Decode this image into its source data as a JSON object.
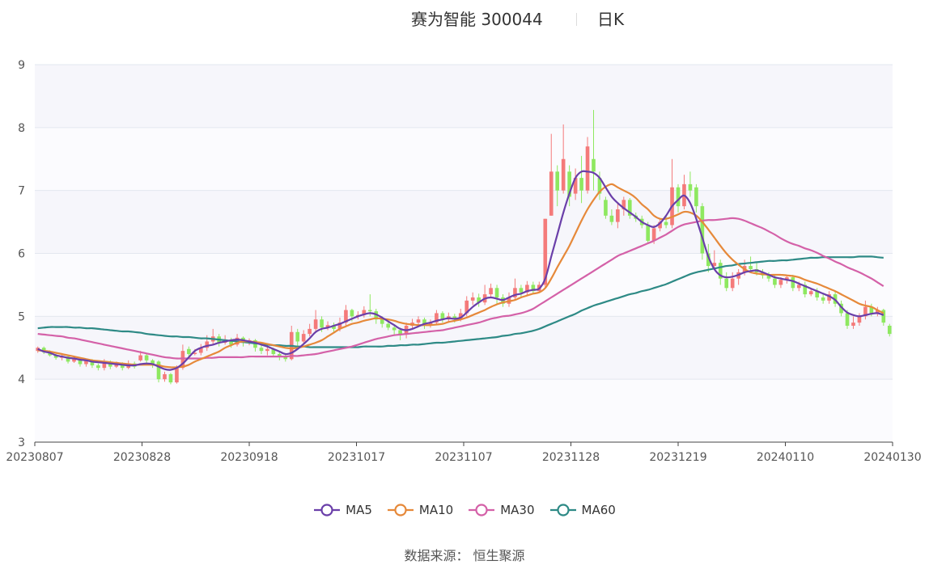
{
  "header": {
    "title": "赛为智能 300044",
    "subtitle": "日K"
  },
  "source": {
    "text": "数据来源：  恒生聚源"
  },
  "colors": {
    "up": "#f47a7a",
    "down": "#8ee860",
    "band": "#f6f6fb",
    "grid": "#e3e7ef",
    "axis": "#444444"
  },
  "chart_data": {
    "type": "candlestick",
    "ylim": [
      3,
      9
    ],
    "yticks": [
      3,
      4,
      5,
      6,
      7,
      8,
      9
    ],
    "xlabels": [
      "20230807",
      "20230828",
      "20230918",
      "20231017",
      "20231107",
      "20231128",
      "20231219",
      "20240110",
      "20240130"
    ],
    "legend": [
      {
        "name": "MA5",
        "color": "#6a3fa9"
      },
      {
        "name": "MA10",
        "color": "#e6893a"
      },
      {
        "name": "MA30",
        "color": "#d461a8"
      },
      {
        "name": "MA60",
        "color": "#2e8a86"
      }
    ],
    "candles": [
      [
        4.45,
        4.5,
        4.52,
        4.42
      ],
      [
        4.5,
        4.43,
        4.52,
        4.4
      ],
      [
        4.43,
        4.38,
        4.46,
        4.36
      ],
      [
        4.38,
        4.34,
        4.41,
        4.31
      ],
      [
        4.34,
        4.36,
        4.4,
        4.3
      ],
      [
        4.36,
        4.28,
        4.38,
        4.25
      ],
      [
        4.28,
        4.32,
        4.35,
        4.26
      ],
      [
        4.32,
        4.24,
        4.34,
        4.2
      ],
      [
        4.24,
        4.3,
        4.33,
        4.2
      ],
      [
        4.3,
        4.22,
        4.32,
        4.18
      ],
      [
        4.22,
        4.18,
        4.25,
        4.14
      ],
      [
        4.18,
        4.28,
        4.32,
        4.14
      ],
      [
        4.28,
        4.2,
        4.3,
        4.16
      ],
      [
        4.2,
        4.24,
        4.28,
        4.18
      ],
      [
        4.24,
        4.18,
        4.27,
        4.14
      ],
      [
        4.18,
        4.25,
        4.3,
        4.16
      ],
      [
        4.25,
        4.2,
        4.28,
        4.17
      ],
      [
        4.3,
        4.38,
        4.45,
        4.28
      ],
      [
        4.38,
        4.3,
        4.42,
        4.26
      ],
      [
        4.3,
        4.22,
        4.32,
        4.18
      ],
      [
        4.28,
        4.0,
        4.3,
        3.95
      ],
      [
        4.0,
        4.08,
        4.12,
        3.96
      ],
      [
        4.08,
        3.95,
        4.1,
        3.92
      ],
      [
        3.95,
        4.18,
        4.22,
        3.93
      ],
      [
        4.18,
        4.45,
        4.55,
        4.15
      ],
      [
        4.48,
        4.4,
        4.52,
        4.35
      ],
      [
        4.4,
        4.42,
        4.48,
        4.38
      ],
      [
        4.42,
        4.5,
        4.56,
        4.38
      ],
      [
        4.5,
        4.6,
        4.7,
        4.45
      ],
      [
        4.6,
        4.68,
        4.8,
        4.55
      ],
      [
        4.68,
        4.58,
        4.72,
        4.52
      ],
      [
        4.58,
        4.62,
        4.7,
        4.55
      ],
      [
        4.62,
        4.55,
        4.66,
        4.5
      ],
      [
        4.55,
        4.66,
        4.72,
        4.52
      ],
      [
        4.66,
        4.58,
        4.68,
        4.52
      ],
      [
        4.58,
        4.62,
        4.65,
        4.54
      ],
      [
        4.62,
        4.5,
        4.64,
        4.44
      ],
      [
        4.5,
        4.45,
        4.55,
        4.4
      ],
      [
        4.45,
        4.48,
        4.52,
        4.38
      ],
      [
        4.48,
        4.4,
        4.5,
        4.35
      ],
      [
        4.4,
        4.36,
        4.45,
        4.3
      ],
      [
        4.36,
        4.32,
        4.4,
        4.28
      ],
      [
        4.32,
        4.75,
        4.85,
        4.3
      ],
      [
        4.75,
        4.6,
        4.8,
        4.5
      ],
      [
        4.6,
        4.72,
        4.78,
        4.55
      ],
      [
        4.72,
        4.8,
        4.88,
        4.68
      ],
      [
        4.8,
        4.95,
        5.1,
        4.75
      ],
      [
        4.95,
        4.82,
        5.0,
        4.75
      ],
      [
        4.82,
        4.86,
        4.92,
        4.78
      ],
      [
        4.86,
        4.8,
        4.9,
        4.74
      ],
      [
        4.8,
        4.9,
        4.98,
        4.76
      ],
      [
        4.9,
        5.1,
        5.18,
        4.85
      ],
      [
        5.1,
        5.0,
        5.12,
        4.92
      ],
      [
        5.0,
        5.02,
        5.08,
        4.95
      ],
      [
        5.02,
        5.1,
        5.16,
        4.98
      ],
      [
        5.1,
        5.08,
        5.35,
        5.0
      ],
      [
        5.08,
        4.95,
        5.12,
        4.88
      ],
      [
        4.95,
        4.88,
        5.0,
        4.82
      ],
      [
        4.88,
        4.82,
        4.92,
        4.78
      ],
      [
        4.82,
        4.78,
        4.86,
        4.7
      ],
      [
        4.78,
        4.72,
        4.82,
        4.62
      ],
      [
        4.72,
        4.85,
        4.9,
        4.65
      ],
      [
        4.85,
        4.9,
        4.96,
        4.8
      ],
      [
        4.9,
        4.95,
        5.0,
        4.84
      ],
      [
        4.95,
        4.85,
        4.98,
        4.8
      ],
      [
        4.85,
        4.9,
        4.95,
        4.82
      ],
      [
        4.9,
        5.05,
        5.1,
        4.86
      ],
      [
        5.05,
        4.95,
        5.08,
        4.9
      ],
      [
        4.95,
        5.0,
        5.06,
        4.92
      ],
      [
        5.0,
        4.95,
        5.04,
        4.9
      ],
      [
        4.95,
        5.05,
        5.12,
        4.92
      ],
      [
        5.05,
        5.25,
        5.32,
        5.0
      ],
      [
        5.25,
        5.3,
        5.38,
        5.18
      ],
      [
        5.3,
        5.22,
        5.36,
        5.15
      ],
      [
        5.22,
        5.35,
        5.5,
        5.18
      ],
      [
        5.35,
        5.45,
        5.52,
        5.3
      ],
      [
        5.45,
        5.3,
        5.5,
        5.2
      ],
      [
        5.3,
        5.2,
        5.35,
        5.15
      ],
      [
        5.2,
        5.3,
        5.38,
        5.15
      ],
      [
        5.3,
        5.45,
        5.6,
        5.25
      ],
      [
        5.45,
        5.38,
        5.5,
        5.3
      ],
      [
        5.38,
        5.5,
        5.56,
        5.32
      ],
      [
        5.5,
        5.4,
        5.55,
        5.35
      ],
      [
        5.4,
        5.5,
        5.55,
        5.38
      ],
      [
        5.5,
        6.55,
        6.55,
        5.45
      ],
      [
        6.6,
        7.3,
        7.9,
        6.6
      ],
      [
        7.3,
        7.0,
        7.4,
        6.75
      ],
      [
        7.0,
        7.5,
        8.05,
        6.95
      ],
      [
        7.3,
        6.9,
        7.4,
        6.75
      ],
      [
        6.95,
        7.2,
        7.35,
        6.85
      ],
      [
        7.2,
        7.0,
        7.55,
        6.8
      ],
      [
        7.0,
        7.7,
        7.85,
        6.95
      ],
      [
        7.5,
        7.3,
        8.28,
        7.0
      ],
      [
        7.2,
        6.95,
        7.3,
        6.85
      ],
      [
        6.85,
        6.6,
        6.9,
        6.55
      ],
      [
        6.6,
        6.5,
        6.7,
        6.45
      ],
      [
        6.5,
        6.7,
        6.8,
        6.4
      ],
      [
        6.7,
        6.85,
        6.9,
        6.6
      ],
      [
        6.85,
        6.6,
        6.88,
        6.55
      ],
      [
        6.6,
        6.55,
        6.65,
        6.5
      ],
      [
        6.55,
        6.45,
        6.6,
        6.4
      ],
      [
        6.45,
        6.2,
        6.5,
        6.15
      ],
      [
        6.2,
        6.4,
        6.45,
        6.15
      ],
      [
        6.4,
        6.5,
        6.55,
        6.35
      ],
      [
        6.5,
        6.45,
        6.6,
        6.4
      ],
      [
        6.45,
        7.05,
        7.5,
        6.4
      ],
      [
        7.05,
        6.75,
        7.1,
        6.65
      ],
      [
        6.75,
        7.1,
        7.25,
        6.7
      ],
      [
        7.1,
        7.0,
        7.3,
        6.9
      ],
      [
        7.05,
        6.75,
        7.1,
        6.65
      ],
      [
        6.75,
        6.0,
        6.8,
        5.9
      ],
      [
        6.0,
        5.8,
        6.15,
        5.7
      ],
      [
        5.8,
        5.85,
        6.05,
        5.75
      ],
      [
        5.85,
        5.6,
        5.9,
        5.5
      ],
      [
        5.6,
        5.45,
        5.7,
        5.4
      ],
      [
        5.45,
        5.6,
        5.7,
        5.4
      ],
      [
        5.6,
        5.7,
        5.75,
        5.5
      ],
      [
        5.7,
        5.8,
        5.9,
        5.65
      ],
      [
        5.8,
        5.75,
        5.95,
        5.7
      ],
      [
        5.75,
        5.7,
        5.85,
        5.65
      ],
      [
        5.7,
        5.65,
        5.75,
        5.6
      ],
      [
        5.65,
        5.6,
        5.7,
        5.55
      ],
      [
        5.6,
        5.5,
        5.65,
        5.45
      ],
      [
        5.5,
        5.58,
        5.62,
        5.45
      ],
      [
        5.58,
        5.62,
        5.66,
        5.52
      ],
      [
        5.62,
        5.45,
        5.66,
        5.4
      ],
      [
        5.45,
        5.5,
        5.55,
        5.4
      ],
      [
        5.5,
        5.35,
        5.55,
        5.3
      ],
      [
        5.35,
        5.4,
        5.45,
        5.32
      ],
      [
        5.4,
        5.3,
        5.45,
        5.25
      ],
      [
        5.3,
        5.25,
        5.35,
        5.2
      ],
      [
        5.25,
        5.35,
        5.4,
        5.2
      ],
      [
        5.35,
        5.2,
        5.4,
        5.15
      ],
      [
        5.2,
        5.05,
        5.25,
        5.0
      ],
      [
        5.05,
        4.85,
        5.1,
        4.8
      ],
      [
        4.85,
        4.9,
        5.0,
        4.8
      ],
      [
        4.9,
        5.0,
        5.05,
        4.85
      ],
      [
        5.0,
        5.15,
        5.25,
        4.95
      ],
      [
        5.15,
        5.05,
        5.2,
        5.0
      ],
      [
        5.05,
        5.1,
        5.15,
        5.0
      ],
      [
        5.1,
        4.9,
        5.12,
        4.85
      ],
      [
        4.85,
        4.72,
        4.88,
        4.68
      ]
    ],
    "ma5": [
      4.48,
      4.44,
      4.42,
      4.38,
      4.36,
      4.34,
      4.33,
      4.31,
      4.3,
      4.28,
      4.27,
      4.26,
      4.25,
      4.24,
      4.23,
      4.22,
      4.22,
      4.24,
      4.25,
      4.24,
      4.2,
      4.16,
      4.15,
      4.18,
      4.25,
      4.35,
      4.45,
      4.5,
      4.53,
      4.55,
      4.58,
      4.6,
      4.62,
      4.63,
      4.62,
      4.6,
      4.58,
      4.55,
      4.52,
      4.48,
      4.44,
      4.4,
      4.42,
      4.48,
      4.56,
      4.65,
      4.75,
      4.8,
      4.82,
      4.85,
      4.88,
      4.92,
      4.96,
      5.0,
      5.03,
      5.05,
      5.03,
      4.98,
      4.92,
      4.86,
      4.8,
      4.78,
      4.8,
      4.84,
      4.88,
      4.9,
      4.93,
      4.95,
      4.97,
      4.96,
      4.98,
      5.06,
      5.15,
      5.22,
      5.28,
      5.3,
      5.28,
      5.26,
      5.3,
      5.34,
      5.36,
      5.4,
      5.42,
      5.44,
      5.6,
      5.95,
      6.3,
      6.65,
      6.95,
      7.2,
      7.3,
      7.3,
      7.28,
      7.2,
      7.05,
      6.9,
      6.8,
      6.72,
      6.65,
      6.58,
      6.5,
      6.45,
      6.42,
      6.48,
      6.6,
      6.75,
      6.85,
      6.92,
      6.8,
      6.55,
      6.25,
      5.95,
      5.75,
      5.65,
      5.62,
      5.63,
      5.66,
      5.7,
      5.72,
      5.73,
      5.7,
      5.66,
      5.62,
      5.6,
      5.58,
      5.56,
      5.52,
      5.48,
      5.44,
      5.4,
      5.36,
      5.32,
      5.26,
      5.15,
      5.06,
      5.02,
      5.0,
      5.02,
      5.04,
      5.05,
      5.02
    ],
    "ma10": [
      4.46,
      4.45,
      4.44,
      4.42,
      4.4,
      4.38,
      4.36,
      4.34,
      4.32,
      4.3,
      4.29,
      4.28,
      4.27,
      4.26,
      4.25,
      4.24,
      4.23,
      4.23,
      4.23,
      4.23,
      4.22,
      4.2,
      4.19,
      4.19,
      4.2,
      4.23,
      4.28,
      4.32,
      4.36,
      4.4,
      4.44,
      4.5,
      4.54,
      4.58,
      4.6,
      4.6,
      4.59,
      4.58,
      4.56,
      4.54,
      4.52,
      4.5,
      4.49,
      4.5,
      4.52,
      4.55,
      4.58,
      4.62,
      4.68,
      4.74,
      4.8,
      4.84,
      4.88,
      4.9,
      4.93,
      4.95,
      4.97,
      4.96,
      4.95,
      4.93,
      4.9,
      4.88,
      4.87,
      4.86,
      4.86,
      4.86,
      4.87,
      4.88,
      4.91,
      4.93,
      4.95,
      4.98,
      5.02,
      5.06,
      5.1,
      5.15,
      5.19,
      5.22,
      5.24,
      5.26,
      5.3,
      5.33,
      5.36,
      5.38,
      5.45,
      5.6,
      5.78,
      5.95,
      6.12,
      6.32,
      6.52,
      6.7,
      6.85,
      6.98,
      7.06,
      7.1,
      7.05,
      7.0,
      6.95,
      6.88,
      6.78,
      6.7,
      6.6,
      6.55,
      6.55,
      6.58,
      6.62,
      6.66,
      6.65,
      6.6,
      6.5,
      6.38,
      6.25,
      6.12,
      6.0,
      5.9,
      5.82,
      5.75,
      5.7,
      5.68,
      5.67,
      5.66,
      5.66,
      5.66,
      5.65,
      5.64,
      5.62,
      5.58,
      5.55,
      5.52,
      5.48,
      5.44,
      5.4,
      5.35,
      5.3,
      5.25,
      5.2,
      5.17,
      5.15,
      5.1,
      5.05
    ],
    "ma30": [
      4.72,
      4.71,
      4.7,
      4.69,
      4.68,
      4.66,
      4.65,
      4.63,
      4.61,
      4.59,
      4.57,
      4.55,
      4.53,
      4.51,
      4.49,
      4.47,
      4.45,
      4.43,
      4.41,
      4.39,
      4.37,
      4.35,
      4.34,
      4.33,
      4.33,
      4.33,
      4.33,
      4.33,
      4.34,
      4.34,
      4.35,
      4.35,
      4.35,
      4.35,
      4.35,
      4.36,
      4.36,
      4.36,
      4.36,
      4.36,
      4.36,
      4.36,
      4.37,
      4.37,
      4.38,
      4.39,
      4.4,
      4.42,
      4.44,
      4.46,
      4.48,
      4.5,
      4.52,
      4.55,
      4.58,
      4.61,
      4.64,
      4.66,
      4.68,
      4.7,
      4.71,
      4.72,
      4.73,
      4.74,
      4.75,
      4.76,
      4.77,
      4.78,
      4.8,
      4.82,
      4.84,
      4.86,
      4.88,
      4.9,
      4.93,
      4.96,
      4.98,
      5.0,
      5.01,
      5.03,
      5.05,
      5.08,
      5.12,
      5.18,
      5.24,
      5.3,
      5.36,
      5.42,
      5.48,
      5.54,
      5.6,
      5.66,
      5.72,
      5.78,
      5.84,
      5.9,
      5.96,
      6.0,
      6.04,
      6.08,
      6.12,
      6.16,
      6.2,
      6.25,
      6.3,
      6.36,
      6.42,
      6.46,
      6.48,
      6.5,
      6.52,
      6.53,
      6.53,
      6.54,
      6.55,
      6.56,
      6.55,
      6.52,
      6.48,
      6.44,
      6.4,
      6.35,
      6.3,
      6.24,
      6.19,
      6.15,
      6.12,
      6.08,
      6.05,
      6.01,
      5.96,
      5.92,
      5.87,
      5.83,
      5.78,
      5.74,
      5.7,
      5.65,
      5.6,
      5.54,
      5.48
    ],
    "ma60": [
      4.81,
      4.82,
      4.83,
      4.83,
      4.83,
      4.83,
      4.82,
      4.82,
      4.81,
      4.81,
      4.8,
      4.79,
      4.78,
      4.77,
      4.76,
      4.76,
      4.75,
      4.74,
      4.72,
      4.71,
      4.7,
      4.69,
      4.68,
      4.68,
      4.67,
      4.67,
      4.66,
      4.65,
      4.65,
      4.64,
      4.63,
      4.62,
      4.61,
      4.6,
      4.59,
      4.58,
      4.57,
      4.56,
      4.55,
      4.54,
      4.54,
      4.53,
      4.53,
      4.52,
      4.52,
      4.51,
      4.51,
      4.51,
      4.51,
      4.51,
      4.51,
      4.51,
      4.51,
      4.51,
      4.52,
      4.52,
      4.52,
      4.52,
      4.53,
      4.53,
      4.54,
      4.54,
      4.55,
      4.55,
      4.56,
      4.57,
      4.58,
      4.58,
      4.59,
      4.6,
      4.61,
      4.62,
      4.63,
      4.64,
      4.65,
      4.66,
      4.67,
      4.69,
      4.7,
      4.72,
      4.73,
      4.75,
      4.77,
      4.8,
      4.84,
      4.88,
      4.92,
      4.96,
      5.0,
      5.04,
      5.09,
      5.13,
      5.17,
      5.2,
      5.23,
      5.26,
      5.29,
      5.32,
      5.35,
      5.37,
      5.4,
      5.42,
      5.45,
      5.48,
      5.51,
      5.55,
      5.59,
      5.63,
      5.67,
      5.7,
      5.72,
      5.74,
      5.76,
      5.78,
      5.8,
      5.81,
      5.83,
      5.84,
      5.85,
      5.86,
      5.87,
      5.88,
      5.88,
      5.89,
      5.89,
      5.9,
      5.91,
      5.92,
      5.93,
      5.93,
      5.94,
      5.94,
      5.94,
      5.94,
      5.94,
      5.94,
      5.95,
      5.95,
      5.95,
      5.94,
      5.93
    ]
  }
}
